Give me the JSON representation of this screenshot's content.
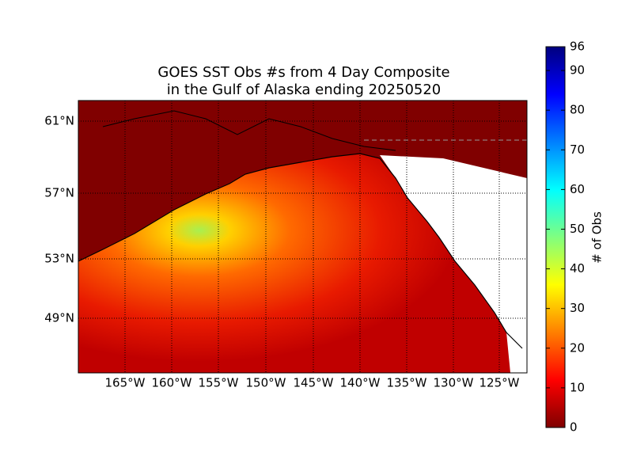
{
  "title": {
    "line1": "GOES SST Obs #s from 4 Day Composite",
    "line2": "in the Gulf of Alaska ending 20250520"
  },
  "map": {
    "lon_labels": [
      "165°W",
      "160°W",
      "155°W",
      "150°W",
      "145°W",
      "140°W",
      "135°W",
      "130°W",
      "125°W"
    ],
    "lat_labels": [
      "61°N",
      "57°N",
      "53°N",
      "49°N"
    ]
  },
  "colorbar": {
    "label": "# of Obs",
    "ticks": [
      0,
      10,
      20,
      30,
      40,
      50,
      60,
      70,
      80,
      90,
      96
    ],
    "range": [
      0,
      96
    ]
  }
}
